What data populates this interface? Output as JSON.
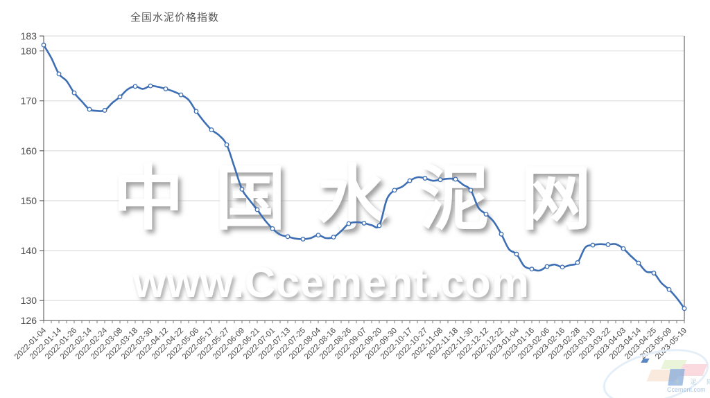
{
  "title": "全国水泥价格指数",
  "watermark": {
    "line1": "中国水泥网",
    "line2": "www.Ccement.com"
  },
  "logo": {
    "text1": "水 泥 网",
    "text2": "Ccement.com"
  },
  "chart_data": {
    "type": "line",
    "title": "全国水泥价格指数",
    "series_name": "全国水泥价格指数",
    "legend": "none",
    "grid": "horizontal",
    "line_color": "#3d6eb4",
    "marker_fill": "#ffffff",
    "grid_color": "#d7d7d7",
    "axis_color": "#4a4a4a",
    "tick_color": "#777777",
    "label_color": "#4a4a4a",
    "ylim": [
      126,
      183
    ],
    "y_ticks": [
      183,
      180,
      170,
      160,
      150,
      140,
      130,
      126
    ],
    "x_label_every_nth_point": 2,
    "x_labels": [
      "2022-01-04",
      "2022-01-14",
      "2022-01-26",
      "2022-02-14",
      "2022-02-24",
      "2022-03-08",
      "2022-03-18",
      "2022-03-30",
      "2022-04-12",
      "2022-04-22",
      "2022-05-06",
      "2022-05-17",
      "2022-05-27",
      "2022-06-09",
      "2022-06-21",
      "2022-07-01",
      "2022-07-13",
      "2022-07-25",
      "2022-08-04",
      "2022-08-16",
      "2022-08-26",
      "2022-09-07",
      "2022-09-20",
      "2022-09-30",
      "2022-10-17",
      "2022-10-27",
      "2022-11-08",
      "2022-11-18",
      "2022-11-30",
      "2022-12-12",
      "2022-12-22",
      "2023-01-04",
      "2023-01-16",
      "2023-02-06",
      "2023-02-16",
      "2023-02-28",
      "2023-03-10",
      "2023-03-22",
      "2023-04-03",
      "2023-04-14",
      "2023-04-25",
      "2023-05-09",
      "2023-05-19"
    ],
    "values": [
      181.2,
      178.6,
      175.4,
      174.0,
      171.6,
      169.9,
      168.3,
      168.0,
      168.1,
      169.6,
      170.8,
      172.3,
      172.9,
      172.4,
      173.0,
      172.8,
      172.4,
      171.9,
      171.2,
      170.2,
      167.9,
      165.9,
      164.2,
      163.1,
      161.2,
      156.8,
      152.3,
      150.1,
      148.2,
      146.1,
      144.4,
      143.2,
      142.8,
      142.4,
      142.3,
      142.5,
      143.1,
      142.5,
      142.7,
      143.9,
      145.4,
      145.7,
      145.5,
      145.1,
      145.0,
      150.3,
      152.1,
      152.8,
      154.0,
      154.7,
      154.5,
      154.0,
      154.2,
      154.4,
      154.3,
      153.2,
      152.1,
      148.6,
      147.3,
      145.8,
      143.3,
      140.3,
      139.3,
      136.9,
      136.3,
      136.0,
      136.8,
      137.2,
      136.7,
      137.1,
      137.6,
      140.6,
      141.1,
      141.3,
      141.2,
      141.3,
      140.4,
      138.9,
      137.5,
      135.8,
      135.5,
      133.5,
      132.2,
      130.5,
      128.4
    ]
  }
}
